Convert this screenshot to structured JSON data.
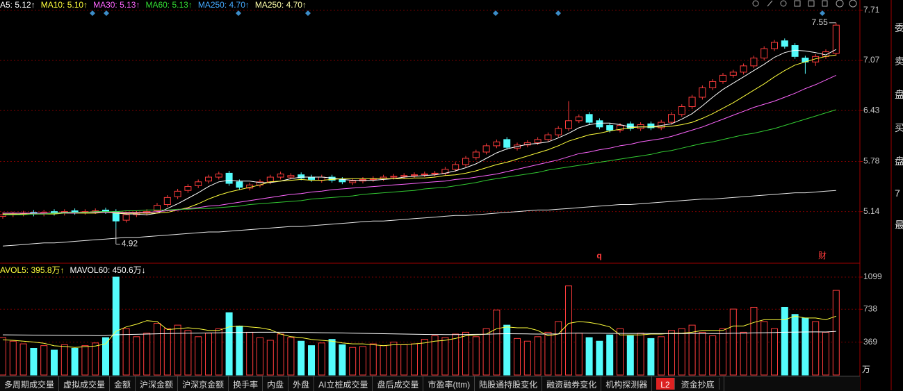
{
  "chart_data": [
    {
      "type": "candlestick",
      "header": [
        {
          "text": "A5: 5.12↑",
          "color": "#ffffff"
        },
        {
          "text": "MA10: 5.10↑",
          "color": "#ffff3c"
        },
        {
          "text": "MA30: 5.13↑",
          "color": "#ff66ff"
        },
        {
          "text": "MA60: 5.13↑",
          "color": "#33dd33"
        },
        {
          "text": "MA250: 4.70↑",
          "color": "#44aaff"
        },
        {
          "text": "MA250: 4.70↑",
          "color": "#ffffaa"
        }
      ],
      "ylim": [
        4.49,
        7.77
      ],
      "yticks": [
        5.14,
        5.78,
        6.43,
        7.07,
        7.71
      ],
      "grid": true,
      "up_color": "#ff3c3c",
      "down_color": "#54fcfc",
      "min_label": "4.92",
      "max_label": "7.55",
      "events": [
        "q",
        "财"
      ],
      "open": [
        5.08,
        5.1,
        5.11,
        5.13,
        5.11,
        5.14,
        5.12,
        5.15,
        5.13,
        5.14,
        5.16,
        5.14,
        5.03,
        5.1,
        5.12,
        5.15,
        5.23,
        5.33,
        5.41,
        5.47,
        5.53,
        5.58,
        5.63,
        5.52,
        5.44,
        5.48,
        5.52,
        5.58,
        5.58,
        5.61,
        5.58,
        5.54,
        5.58,
        5.55,
        5.51,
        5.53,
        5.55,
        5.56,
        5.58,
        5.59,
        5.6,
        5.61,
        5.62,
        5.63,
        5.68,
        5.74,
        5.83,
        5.9,
        5.98,
        6.06,
        5.95,
        5.99,
        6.02,
        6.06,
        6.12,
        6.2,
        6.3,
        6.38,
        6.3,
        6.24,
        6.18,
        6.26,
        6.2,
        6.26,
        6.21,
        6.28,
        6.38,
        6.48,
        6.6,
        6.72,
        6.8,
        6.88,
        6.92,
        7.0,
        7.1,
        7.22,
        7.32,
        7.26,
        7.1,
        7.05,
        7.12,
        7.16
      ],
      "high": [
        5.13,
        5.14,
        5.15,
        5.16,
        5.16,
        5.17,
        5.17,
        5.18,
        5.17,
        5.18,
        5.19,
        5.17,
        5.13,
        5.15,
        5.17,
        5.25,
        5.35,
        5.43,
        5.49,
        5.55,
        5.61,
        5.65,
        5.66,
        5.55,
        5.51,
        5.55,
        5.61,
        5.65,
        5.63,
        5.64,
        5.61,
        5.61,
        5.61,
        5.58,
        5.56,
        5.58,
        5.59,
        5.61,
        5.62,
        5.63,
        5.64,
        5.65,
        5.66,
        5.71,
        5.77,
        5.85,
        5.93,
        6.01,
        6.06,
        6.09,
        6.02,
        6.05,
        6.09,
        6.15,
        6.23,
        6.55,
        6.38,
        6.41,
        6.33,
        6.27,
        6.27,
        6.29,
        6.28,
        6.29,
        6.31,
        6.41,
        6.51,
        6.63,
        6.75,
        6.83,
        6.91,
        6.95,
        7.03,
        7.13,
        7.25,
        7.33,
        7.35,
        7.29,
        7.13,
        7.15,
        7.21,
        7.55
      ],
      "low": [
        5.05,
        5.07,
        5.08,
        5.08,
        5.08,
        5.09,
        5.09,
        5.1,
        5.1,
        5.11,
        5.11,
        4.92,
        5.0,
        5.07,
        5.09,
        5.12,
        5.2,
        5.3,
        5.38,
        5.44,
        5.5,
        5.55,
        5.47,
        5.42,
        5.41,
        5.45,
        5.49,
        5.55,
        5.55,
        5.54,
        5.52,
        5.51,
        5.51,
        5.49,
        5.48,
        5.5,
        5.52,
        5.53,
        5.55,
        5.56,
        5.57,
        5.58,
        5.59,
        5.6,
        5.65,
        5.71,
        5.8,
        5.87,
        5.95,
        5.93,
        5.92,
        5.96,
        5.99,
        6.03,
        6.09,
        6.17,
        6.27,
        6.25,
        6.19,
        6.15,
        6.15,
        6.17,
        6.17,
        6.18,
        6.18,
        6.25,
        6.35,
        6.45,
        6.57,
        6.69,
        6.77,
        6.85,
        6.89,
        6.97,
        7.07,
        7.19,
        7.22,
        7.09,
        6.9,
        7.0,
        7.09,
        7.13
      ],
      "close": [
        5.1,
        5.11,
        5.12,
        5.11,
        5.13,
        5.12,
        5.14,
        5.13,
        5.14,
        5.15,
        5.14,
        5.02,
        5.1,
        5.12,
        5.14,
        5.22,
        5.32,
        5.4,
        5.46,
        5.52,
        5.58,
        5.62,
        5.5,
        5.45,
        5.48,
        5.52,
        5.58,
        5.62,
        5.6,
        5.57,
        5.55,
        5.58,
        5.54,
        5.52,
        5.53,
        5.55,
        5.56,
        5.58,
        5.59,
        5.6,
        5.61,
        5.62,
        5.63,
        5.68,
        5.74,
        5.82,
        5.9,
        5.98,
        6.03,
        5.96,
        5.99,
        6.02,
        6.06,
        6.12,
        6.2,
        6.3,
        6.35,
        6.28,
        6.22,
        6.18,
        6.24,
        6.2,
        6.25,
        6.21,
        6.28,
        6.38,
        6.48,
        6.6,
        6.72,
        6.8,
        6.88,
        6.92,
        7.0,
        7.1,
        7.22,
        7.3,
        7.25,
        7.12,
        7.05,
        7.12,
        7.18,
        7.52
      ],
      "lines": [
        {
          "color": "#ffffff",
          "values": [
            5.1,
            5.1,
            5.11,
            5.11,
            5.11,
            5.12,
            5.13,
            5.13,
            5.13,
            5.14,
            5.14,
            5.12,
            5.11,
            5.11,
            5.1,
            5.12,
            5.18,
            5.24,
            5.31,
            5.38,
            5.46,
            5.52,
            5.54,
            5.53,
            5.53,
            5.51,
            5.51,
            5.53,
            5.56,
            5.58,
            5.58,
            5.58,
            5.57,
            5.55,
            5.54,
            5.54,
            5.54,
            5.55,
            5.56,
            5.58,
            5.59,
            5.6,
            5.61,
            5.63,
            5.66,
            5.7,
            5.75,
            5.82,
            5.89,
            5.94,
            5.97,
            6.0,
            6.01,
            6.03,
            6.08,
            6.14,
            6.21,
            6.25,
            6.27,
            6.27,
            6.25,
            6.22,
            6.22,
            6.22,
            6.24,
            6.26,
            6.32,
            6.39,
            6.49,
            6.6,
            6.7,
            6.78,
            6.86,
            6.94,
            7.02,
            7.11,
            7.17,
            7.2,
            7.19,
            7.17,
            7.14,
            7.21
          ]
        },
        {
          "color": "#ffff3c",
          "values": [
            5.11,
            5.11,
            5.11,
            5.11,
            5.11,
            5.11,
            5.12,
            5.12,
            5.12,
            5.12,
            5.13,
            5.12,
            5.12,
            5.12,
            5.12,
            5.12,
            5.13,
            5.16,
            5.19,
            5.24,
            5.3,
            5.35,
            5.39,
            5.42,
            5.45,
            5.48,
            5.52,
            5.53,
            5.54,
            5.55,
            5.54,
            5.54,
            5.55,
            5.56,
            5.56,
            5.56,
            5.56,
            5.56,
            5.56,
            5.56,
            5.57,
            5.57,
            5.58,
            5.6,
            5.61,
            5.63,
            5.66,
            5.7,
            5.74,
            5.77,
            5.81,
            5.85,
            5.89,
            5.93,
            5.98,
            6.04,
            6.08,
            6.12,
            6.14,
            6.17,
            6.19,
            6.21,
            6.22,
            6.22,
            6.22,
            6.23,
            6.25,
            6.28,
            6.33,
            6.39,
            6.46,
            6.53,
            6.61,
            6.69,
            6.77,
            6.86,
            6.94,
            7.01,
            7.05,
            7.09,
            7.12,
            7.14
          ]
        },
        {
          "color": "#ff66ff",
          "values": [
            5.12,
            5.12,
            5.12,
            5.12,
            5.12,
            5.12,
            5.12,
            5.12,
            5.13,
            5.13,
            5.13,
            5.13,
            5.13,
            5.13,
            5.13,
            5.14,
            5.15,
            5.16,
            5.18,
            5.19,
            5.21,
            5.22,
            5.24,
            5.26,
            5.28,
            5.3,
            5.32,
            5.34,
            5.36,
            5.37,
            5.39,
            5.4,
            5.42,
            5.43,
            5.44,
            5.45,
            5.46,
            5.47,
            5.48,
            5.49,
            5.5,
            5.51,
            5.52,
            5.53,
            5.55,
            5.56,
            5.58,
            5.6,
            5.62,
            5.65,
            5.68,
            5.71,
            5.74,
            5.77,
            5.8,
            5.84,
            5.88,
            5.9,
            5.93,
            5.95,
            5.98,
            6.0,
            6.03,
            6.05,
            6.07,
            6.1,
            6.14,
            6.18,
            6.22,
            6.27,
            6.32,
            6.37,
            6.42,
            6.47,
            6.51,
            6.55,
            6.6,
            6.65,
            6.71,
            6.76,
            6.82,
            6.88
          ]
        },
        {
          "color": "#33cc33",
          "values": [
            5.1,
            5.1,
            5.1,
            5.11,
            5.11,
            5.12,
            5.12,
            5.13,
            5.13,
            5.14,
            5.14,
            5.14,
            5.15,
            5.15,
            5.16,
            5.16,
            5.16,
            5.17,
            5.17,
            5.18,
            5.18,
            5.19,
            5.2,
            5.21,
            5.23,
            5.24,
            5.25,
            5.26,
            5.27,
            5.28,
            5.3,
            5.31,
            5.32,
            5.33,
            5.34,
            5.36,
            5.37,
            5.38,
            5.39,
            5.4,
            5.41,
            5.43,
            5.44,
            5.45,
            5.47,
            5.49,
            5.51,
            5.54,
            5.56,
            5.58,
            5.6,
            5.62,
            5.64,
            5.67,
            5.69,
            5.71,
            5.73,
            5.75,
            5.77,
            5.79,
            5.81,
            5.83,
            5.85,
            5.87,
            5.9,
            5.92,
            5.95,
            5.98,
            6.01,
            6.03,
            6.06,
            6.09,
            6.12,
            6.14,
            6.17,
            6.2,
            6.24,
            6.28,
            6.32,
            6.36,
            6.4,
            6.44
          ]
        },
        {
          "color": "#e8e8e8",
          "values": [
            4.7,
            4.71,
            4.72,
            4.73,
            4.74,
            4.74,
            4.75,
            4.76,
            4.77,
            4.78,
            4.79,
            4.8,
            4.81,
            4.81,
            4.82,
            4.83,
            4.84,
            4.85,
            4.86,
            4.87,
            4.88,
            4.88,
            4.89,
            4.9,
            4.91,
            4.92,
            4.93,
            4.94,
            4.95,
            4.95,
            4.96,
            4.97,
            4.98,
            4.99,
            5.0,
            5.01,
            5.02,
            5.02,
            5.03,
            5.04,
            5.05,
            5.06,
            5.07,
            5.08,
            5.09,
            5.09,
            5.1,
            5.11,
            5.12,
            5.13,
            5.14,
            5.15,
            5.16,
            5.16,
            5.17,
            5.18,
            5.19,
            5.2,
            5.21,
            5.22,
            5.23,
            5.23,
            5.24,
            5.25,
            5.26,
            5.27,
            5.28,
            5.29,
            5.3,
            5.3,
            5.31,
            5.32,
            5.33,
            5.34,
            5.35,
            5.36,
            5.37,
            5.38,
            5.38,
            5.39,
            5.4,
            5.41
          ]
        }
      ]
    },
    {
      "type": "bar",
      "header": [
        {
          "text": "AVOL5: 395.8万↑",
          "color": "#ffff3c"
        },
        {
          "text": "MAVOL60: 450.6万↓",
          "color": "#ffffff"
        }
      ],
      "ylim": [
        0,
        1208
      ],
      "yticks": [
        369,
        738,
        1099
      ],
      "grid": true,
      "unit": "万",
      "values": [
        420,
        380,
        350,
        300,
        330,
        280,
        340,
        300,
        330,
        360,
        420,
        1099,
        520,
        430,
        470,
        580,
        520,
        560,
        500,
        430,
        470,
        520,
        700,
        550,
        480,
        420,
        390,
        460,
        420,
        380,
        330,
        360,
        400,
        340,
        310,
        320,
        350,
        330,
        370,
        340,
        350,
        400,
        440,
        420,
        460,
        480,
        430,
        520,
        730,
        560,
        410,
        380,
        430,
        480,
        600,
        1000,
        470,
        420,
        380,
        450,
        520,
        440,
        470,
        410,
        430,
        500,
        520,
        560,
        480,
        440,
        520,
        740,
        480,
        760,
        600,
        520,
        760,
        680,
        640,
        600,
        480,
        950
      ],
      "lines": [
        {
          "color": "#ffff3c",
          "values": [
            395,
            390,
            380,
            370,
            356,
            328,
            320,
            310,
            318,
            326,
            350,
            490,
            540,
            570,
            610,
            600,
            510,
            520,
            530,
            520,
            500,
            500,
            540,
            550,
            540,
            530,
            510,
            460,
            430,
            420,
            400,
            390,
            380,
            360,
            350,
            350,
            340,
            330,
            340,
            340,
            350,
            360,
            380,
            390,
            410,
            440,
            450,
            460,
            520,
            540,
            530,
            530,
            500,
            440,
            460,
            580,
            600,
            590,
            570,
            540,
            450,
            450,
            450,
            460,
            460,
            470,
            470,
            480,
            500,
            500,
            500,
            550,
            550,
            590,
            620,
            620,
            620,
            660,
            640,
            640,
            620,
            660
          ]
        },
        {
          "color": "#ffffff",
          "values": [
            451,
            450,
            449,
            448,
            447,
            446,
            445,
            444,
            444,
            443,
            443,
            452,
            455,
            457,
            460,
            463,
            465,
            468,
            470,
            471,
            472,
            474,
            477,
            478,
            479,
            480,
            480,
            480,
            479,
            478,
            476,
            475,
            474,
            472,
            470,
            468,
            466,
            464,
            462,
            460,
            458,
            456,
            455,
            454,
            454,
            455,
            457,
            458,
            462,
            464,
            463,
            461,
            460,
            460,
            461,
            470,
            471,
            470,
            469,
            468,
            468,
            467,
            467,
            466,
            465,
            465,
            466,
            467,
            467,
            466,
            466,
            470,
            470,
            473,
            475,
            476,
            480,
            482,
            483,
            484,
            483,
            490
          ]
        }
      ]
    }
  ],
  "tabs": [
    "多周期成交量",
    "虚拟成交量",
    "金额",
    "沪深金额",
    "沪深京金额",
    "换手率",
    "内盘",
    "外盘",
    "AI立桩成交量",
    "盘后成交量",
    "市盈率(ttm)",
    "陆股通持股变化",
    "融资融券变化",
    "机构探测器"
  ],
  "last_tab": {
    "badge": "L2",
    "text": "资金抄底"
  },
  "side_labels": [
    "委",
    "卖",
    "盘",
    "买",
    "盘",
    "7",
    "最"
  ]
}
